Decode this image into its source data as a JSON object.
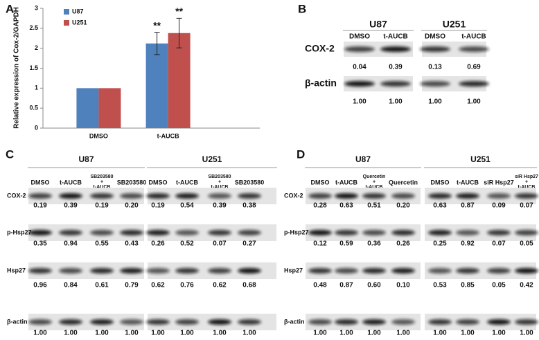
{
  "chart_data": {
    "type": "bar",
    "panel": "A",
    "ylabel": "Relative expression of Cox-2/GAPDH",
    "categories": [
      "DMSO",
      "t-AUCB"
    ],
    "series": [
      {
        "name": "U87",
        "color": "#4f81bd",
        "values": [
          1,
          2.12
        ],
        "errors": [
          0,
          0.28
        ]
      },
      {
        "name": "U251",
        "color": "#c0504d",
        "values": [
          1,
          2.38
        ],
        "errors": [
          0,
          0.37
        ]
      }
    ],
    "annotations": [
      "**",
      "**"
    ],
    "ylim": [
      0,
      3
    ],
    "yticks": [
      0,
      0.5,
      1,
      1.5,
      2,
      2.5,
      3
    ],
    "legend": "top-left"
  },
  "blots": [
    {
      "label": "B",
      "groups": [
        {
          "name": "U87",
          "lanes": [
            [
              "DMSO"
            ],
            [
              "t-AUCB"
            ]
          ]
        },
        {
          "name": "U251",
          "lanes": [
            [
              "DMSO"
            ],
            [
              "t-AUCB"
            ]
          ]
        }
      ],
      "rows": [
        {
          "name": "COX-2",
          "values": [
            "0.04",
            "0.39",
            "0.13",
            "0.69"
          ]
        },
        {
          "name": "β-actin",
          "values": [
            "1.00",
            "1.00",
            "1.00",
            "1.00"
          ]
        }
      ]
    },
    {
      "label": "C",
      "groups": [
        {
          "name": "U87",
          "lanes": [
            [
              "DMSO"
            ],
            [
              "t-AUCB"
            ],
            [
              "SB203580",
              "+",
              "t-AUCB"
            ],
            [
              "SB203580"
            ]
          ]
        },
        {
          "name": "U251",
          "lanes": [
            [
              "DMSO"
            ],
            [
              "t-AUCB"
            ],
            [
              "SB203580",
              "+",
              "t-AUCB"
            ],
            [
              "SB203580"
            ]
          ]
        }
      ],
      "rows": [
        {
          "name": "COX-2",
          "values": [
            "0.19",
            "0.39",
            "0.19",
            "0.20",
            "0.19",
            "0.54",
            "0.39",
            "0.38"
          ]
        },
        {
          "name": "p-Hsp27",
          "values": [
            "0.35",
            "0.94",
            "0.55",
            "0.43",
            "0.26",
            "0.52",
            "0.07",
            "0.27"
          ]
        },
        {
          "name": "Hsp27",
          "values": [
            "0.96",
            "0.84",
            "0.61",
            "0.79",
            "0.62",
            "0.76",
            "0.62",
            "0.68"
          ]
        },
        {
          "name": "β-actin",
          "values": [
            "1.00",
            "1.00",
            "1.00",
            "1.00",
            "1.00",
            "1.00",
            "1.00",
            "1.00"
          ]
        }
      ]
    },
    {
      "label": "D",
      "groups": [
        {
          "name": "U87",
          "lanes": [
            [
              "DMSO"
            ],
            [
              "t-AUCB"
            ],
            [
              "Quercetin",
              "+",
              "t-AUCB"
            ],
            [
              "Quercetin"
            ]
          ]
        },
        {
          "name": "U251",
          "lanes": [
            [
              "DMSO"
            ],
            [
              "t-AUCB"
            ],
            [
              "siR Hsp27"
            ],
            [
              "siR Hsp27",
              "+",
              "t-AUCB"
            ]
          ]
        }
      ],
      "rows": [
        {
          "name": "COX-2",
          "values": [
            "0.28",
            "0.63",
            "0.51",
            "0.20",
            "0.63",
            "0.87",
            "0.09",
            "0.07"
          ]
        },
        {
          "name": "p-Hsp27",
          "values": [
            "0.12",
            "0.59",
            "0.36",
            "0.26",
            "0.25",
            "0.92",
            "0.07",
            "0.05"
          ]
        },
        {
          "name": "Hsp27",
          "values": [
            "0.48",
            "0.87",
            "0.60",
            "0.10",
            "0.53",
            "0.85",
            "0.05",
            "0.42"
          ]
        },
        {
          "name": "β-actin",
          "values": [
            "1.00",
            "1.00",
            "1.00",
            "1.00",
            "1.00",
            "1.00",
            "1.00",
            "1.00"
          ]
        }
      ]
    }
  ]
}
